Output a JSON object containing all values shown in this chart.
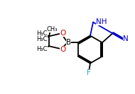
{
  "bg_color": "#ffffff",
  "bond_color": "#000000",
  "N_color": "#0000cc",
  "O_color": "#cc0000",
  "F_color": "#33aaaa",
  "lw": 1.3,
  "fs_main": 7.5,
  "fs_small": 6.0,
  "xlim": [
    0,
    1.9
  ],
  "ylim": [
    0,
    1.33
  ]
}
